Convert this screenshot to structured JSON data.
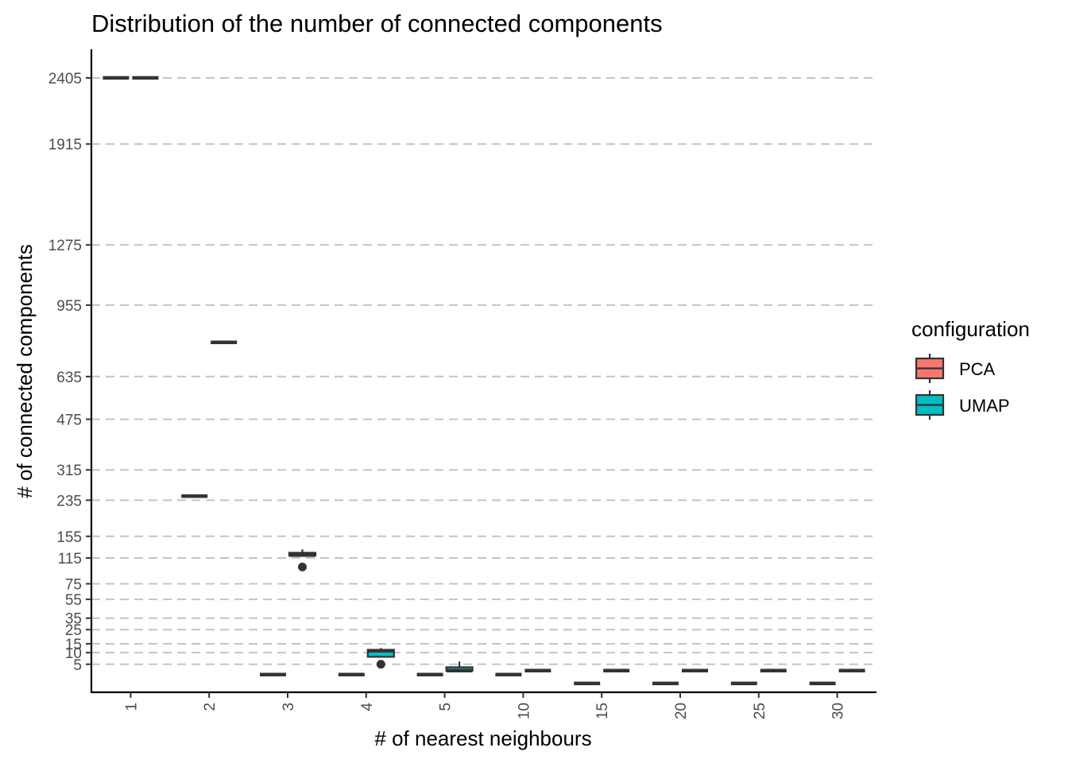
{
  "chart_data": {
    "type": "boxplot",
    "title": "Distribution of the number of connected components",
    "xlabel": "# of nearest neighbours",
    "ylabel": "# of connected components",
    "categories": [
      "1",
      "2",
      "3",
      "4",
      "5",
      "10",
      "15",
      "20",
      "25",
      "30"
    ],
    "y_ticks": [
      "2405",
      "1915",
      "1275",
      "955",
      "635",
      "475",
      "315",
      "235",
      "155",
      "115",
      "75",
      "55",
      "35",
      "25",
      "15",
      "10",
      "5"
    ],
    "y_scale": "sqrt",
    "ylim": [
      0,
      2800
    ],
    "grid": "horizontal dashed",
    "legend": {
      "title": "configuration",
      "position": "right",
      "entries": [
        {
          "name": "PCA",
          "color": "#F8766D"
        },
        {
          "name": "UMAP",
          "color": "#00BFC4"
        }
      ]
    },
    "series": [
      {
        "name": "PCA",
        "color": "#F8766D",
        "boxes": [
          {
            "category": "1",
            "min": 2405,
            "q1": 2405,
            "median": 2405,
            "q3": 2405,
            "max": 2405,
            "outliers": []
          },
          {
            "category": "2",
            "min": 245,
            "q1": 245,
            "median": 245,
            "q3": 245,
            "max": 245,
            "outliers": []
          },
          {
            "category": "3",
            "min": 2,
            "q1": 2,
            "median": 2,
            "q3": 2,
            "max": 2,
            "outliers": []
          },
          {
            "category": "4",
            "min": 2,
            "q1": 2,
            "median": 2,
            "q3": 2,
            "max": 2,
            "outliers": []
          },
          {
            "category": "5",
            "min": 2,
            "q1": 2,
            "median": 2,
            "q3": 2,
            "max": 2,
            "outliers": []
          },
          {
            "category": "10",
            "min": 2,
            "q1": 2,
            "median": 2,
            "q3": 2,
            "max": 2,
            "outliers": []
          },
          {
            "category": "15",
            "min": 0.5,
            "q1": 0.5,
            "median": 0.5,
            "q3": 0.5,
            "max": 0.5,
            "outliers": []
          },
          {
            "category": "20",
            "min": 0.5,
            "q1": 0.5,
            "median": 0.5,
            "q3": 0.5,
            "max": 0.5,
            "outliers": []
          },
          {
            "category": "25",
            "min": 0.5,
            "q1": 0.5,
            "median": 0.5,
            "q3": 0.5,
            "max": 0.5,
            "outliers": []
          },
          {
            "category": "30",
            "min": 0.5,
            "q1": 0.5,
            "median": 0.5,
            "q3": 0.5,
            "max": 0.5,
            "outliers": []
          }
        ]
      },
      {
        "name": "UMAP",
        "color": "#00BFC4",
        "boxes": [
          {
            "category": "1",
            "min": 2405,
            "q1": 2405,
            "median": 2405,
            "q3": 2405,
            "max": 2405,
            "outliers": []
          },
          {
            "category": "2",
            "min": 780,
            "q1": 780,
            "median": 780,
            "q3": 780,
            "max": 780,
            "outliers": []
          },
          {
            "category": "3",
            "min": 119,
            "q1": 119,
            "median": 120,
            "q3": 124,
            "max": 130,
            "outliers": [
              100
            ]
          },
          {
            "category": "4",
            "min": 8,
            "q1": 8,
            "median": 11,
            "q3": 11.5,
            "max": 12.5,
            "outliers": [
              5
            ]
          },
          {
            "category": "5",
            "min": 3,
            "q1": 3,
            "median": 3,
            "q3": 4,
            "max": 6,
            "outliers": []
          },
          {
            "category": "10",
            "min": 3,
            "q1": 3,
            "median": 3,
            "q3": 3,
            "max": 3,
            "outliers": []
          },
          {
            "category": "15",
            "min": 3,
            "q1": 3,
            "median": 3,
            "q3": 3,
            "max": 3,
            "outliers": []
          },
          {
            "category": "20",
            "min": 3,
            "q1": 3,
            "median": 3,
            "q3": 3,
            "max": 3,
            "outliers": []
          },
          {
            "category": "25",
            "min": 3,
            "q1": 3,
            "median": 3,
            "q3": 3,
            "max": 3,
            "outliers": []
          },
          {
            "category": "30",
            "min": 3,
            "q1": 3,
            "median": 3,
            "q3": 3,
            "max": 3,
            "outliers": []
          }
        ]
      }
    ]
  }
}
